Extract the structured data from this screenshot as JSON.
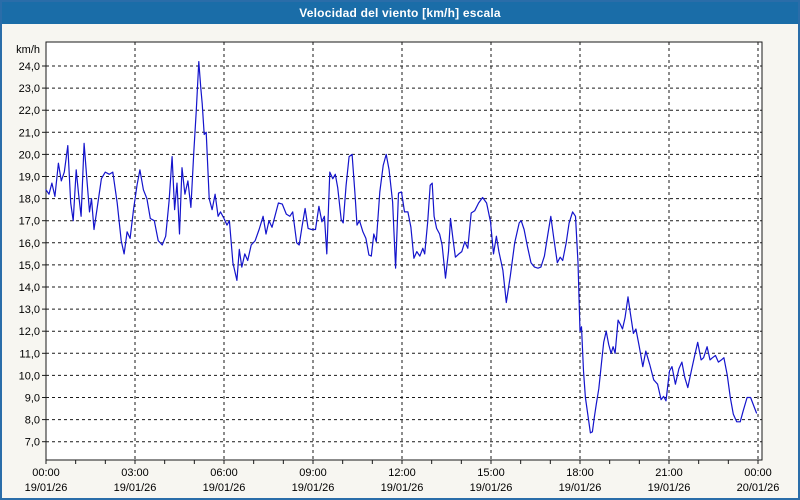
{
  "title": "Velocidad del viento [km/h] escala",
  "colors": {
    "titlebar": "#1a6da8",
    "title_text": "#ffffff",
    "window_border": "#2a6da9",
    "background": "#f7f6f1",
    "plot_background": "#ffffff",
    "axis": "#1a1a1a",
    "grid": "#1a1a1a",
    "text": "#000000",
    "line": "#1414cc"
  },
  "chart_data": {
    "type": "line",
    "title": "Velocidad del viento [km/h] escala",
    "ylabel": "km/h",
    "xlabel": "",
    "legend": "none",
    "grid": "dashed",
    "ylim": [
      6.3,
      25.3
    ],
    "x_range_minutes": [
      0,
      1440
    ],
    "y_tick_values": [
      24,
      23,
      22,
      21,
      20,
      19,
      18,
      17,
      16,
      15,
      14,
      13,
      12,
      11,
      10,
      9,
      8,
      7
    ],
    "y_tick_labels": [
      "24,0",
      "23,0",
      "22,0",
      "21,0",
      "20,0",
      "19,0",
      "18,0",
      "17,0",
      "16,0",
      "15,0",
      "14,0",
      "13,0",
      "12,0",
      "11,0",
      "10,0",
      "9,0",
      "8,0",
      "7,0"
    ],
    "x_ticks": [
      {
        "minutes": 0,
        "time": "00:00",
        "date": "19/01/26"
      },
      {
        "minutes": 180,
        "time": "03:00",
        "date": "19/01/26"
      },
      {
        "minutes": 360,
        "time": "06:00",
        "date": "19/01/26"
      },
      {
        "minutes": 540,
        "time": "09:00",
        "date": "19/01/26"
      },
      {
        "minutes": 720,
        "time": "12:00",
        "date": "19/01/26"
      },
      {
        "minutes": 900,
        "time": "15:00",
        "date": "19/01/26"
      },
      {
        "minutes": 1080,
        "time": "18:00",
        "date": "19/01/26"
      },
      {
        "minutes": 1260,
        "time": "21:00",
        "date": "19/01/26"
      },
      {
        "minutes": 1440,
        "time": "00:00",
        "date": "20/01/26"
      }
    ],
    "series": [
      {
        "name": "Velocidad del viento [km/h]",
        "color": "#1414cc",
        "points": [
          [
            0,
            18.4
          ],
          [
            6,
            18.2
          ],
          [
            12,
            18.7
          ],
          [
            18,
            18.1
          ],
          [
            25,
            19.6
          ],
          [
            31,
            18.8
          ],
          [
            37,
            19.2
          ],
          [
            44,
            20.4
          ],
          [
            50,
            17.8
          ],
          [
            55,
            17.0
          ],
          [
            61,
            19.3
          ],
          [
            66,
            18.2
          ],
          [
            71,
            17.2
          ],
          [
            77,
            20.5
          ],
          [
            83,
            18.8
          ],
          [
            88,
            17.4
          ],
          [
            92,
            18.0
          ],
          [
            97,
            16.6
          ],
          [
            105,
            17.8
          ],
          [
            112,
            18.9
          ],
          [
            120,
            19.2
          ],
          [
            128,
            19.1
          ],
          [
            135,
            19.2
          ],
          [
            144,
            17.8
          ],
          [
            152,
            16.1
          ],
          [
            158,
            15.5
          ],
          [
            164,
            16.5
          ],
          [
            170,
            16.2
          ],
          [
            177,
            17.5
          ],
          [
            184,
            18.6
          ],
          [
            190,
            19.3
          ],
          [
            197,
            18.4
          ],
          [
            204,
            18.0
          ],
          [
            211,
            17.1
          ],
          [
            219,
            17.0
          ],
          [
            227,
            16.1
          ],
          [
            235,
            15.9
          ],
          [
            242,
            16.3
          ],
          [
            249,
            17.9
          ],
          [
            255,
            19.9
          ],
          [
            260,
            17.5
          ],
          [
            265,
            18.7
          ],
          [
            270,
            16.4
          ],
          [
            275,
            19.4
          ],
          [
            281,
            18.2
          ],
          [
            287,
            18.8
          ],
          [
            293,
            17.6
          ],
          [
            299,
            20.1
          ],
          [
            304,
            22.0
          ],
          [
            309,
            24.2
          ],
          [
            313,
            23.0
          ],
          [
            316,
            22.3
          ],
          [
            320,
            20.9
          ],
          [
            324,
            21.0
          ],
          [
            330,
            18.0
          ],
          [
            336,
            17.5
          ],
          [
            342,
            18.2
          ],
          [
            348,
            17.2
          ],
          [
            353,
            17.4
          ],
          [
            360,
            17.1
          ],
          [
            366,
            16.8
          ],
          [
            371,
            17.0
          ],
          [
            378,
            15.1
          ],
          [
            386,
            14.3
          ],
          [
            391,
            15.7
          ],
          [
            396,
            14.9
          ],
          [
            402,
            15.5
          ],
          [
            408,
            15.2
          ],
          [
            415,
            15.9
          ],
          [
            423,
            16.1
          ],
          [
            431,
            16.6
          ],
          [
            439,
            17.2
          ],
          [
            445,
            16.4
          ],
          [
            451,
            17.0
          ],
          [
            457,
            16.7
          ],
          [
            463,
            17.2
          ],
          [
            470,
            17.8
          ],
          [
            478,
            17.75
          ],
          [
            486,
            17.3
          ],
          [
            493,
            17.2
          ],
          [
            499,
            17.4
          ],
          [
            507,
            16.0
          ],
          [
            512,
            15.9
          ],
          [
            518,
            16.75
          ],
          [
            524,
            17.55
          ],
          [
            530,
            16.65
          ],
          [
            537,
            16.6
          ],
          [
            545,
            16.6
          ],
          [
            552,
            17.65
          ],
          [
            558,
            16.95
          ],
          [
            563,
            17.2
          ],
          [
            568,
            15.5
          ],
          [
            574,
            19.2
          ],
          [
            580,
            18.9
          ],
          [
            585,
            19.1
          ],
          [
            590,
            18.5
          ],
          [
            597,
            17.05
          ],
          [
            601,
            16.9
          ],
          [
            607,
            18.6
          ],
          [
            613,
            19.9
          ],
          [
            619,
            20.0
          ],
          [
            625,
            18.2
          ],
          [
            629,
            16.8
          ],
          [
            634,
            17.0
          ],
          [
            641,
            16.5
          ],
          [
            647,
            16.2
          ],
          [
            653,
            15.45
          ],
          [
            658,
            15.4
          ],
          [
            663,
            16.4
          ],
          [
            668,
            16.05
          ],
          [
            675,
            18.3
          ],
          [
            682,
            19.5
          ],
          [
            688,
            20.0
          ],
          [
            694,
            19.3
          ],
          [
            701,
            17.85
          ],
          [
            707,
            14.85
          ],
          [
            713,
            18.25
          ],
          [
            719,
            18.3
          ],
          [
            725,
            17.4
          ],
          [
            732,
            17.4
          ],
          [
            738,
            16.7
          ],
          [
            744,
            15.3
          ],
          [
            750,
            15.6
          ],
          [
            756,
            15.4
          ],
          [
            762,
            15.75
          ],
          [
            766,
            15.5
          ],
          [
            772,
            16.95
          ],
          [
            777,
            18.6
          ],
          [
            781,
            18.7
          ],
          [
            785,
            17.2
          ],
          [
            790,
            16.65
          ],
          [
            796,
            16.4
          ],
          [
            801,
            15.9
          ],
          [
            808,
            14.4
          ],
          [
            814,
            15.6
          ],
          [
            818,
            17.1
          ],
          [
            823,
            16.2
          ],
          [
            828,
            15.35
          ],
          [
            835,
            15.5
          ],
          [
            841,
            15.6
          ],
          [
            847,
            16.05
          ],
          [
            853,
            15.75
          ],
          [
            860,
            17.35
          ],
          [
            867,
            17.45
          ],
          [
            875,
            17.8
          ],
          [
            883,
            18.05
          ],
          [
            891,
            17.8
          ],
          [
            899,
            16.95
          ],
          [
            905,
            15.5
          ],
          [
            911,
            16.3
          ],
          [
            916,
            15.6
          ],
          [
            924,
            14.75
          ],
          [
            931,
            13.3
          ],
          [
            939,
            14.5
          ],
          [
            948,
            16.0
          ],
          [
            957,
            16.9
          ],
          [
            961,
            17.0
          ],
          [
            967,
            16.6
          ],
          [
            974,
            15.8
          ],
          [
            981,
            15.1
          ],
          [
            988,
            14.9
          ],
          [
            995,
            14.85
          ],
          [
            1001,
            14.9
          ],
          [
            1008,
            15.4
          ],
          [
            1015,
            16.4
          ],
          [
            1021,
            17.2
          ],
          [
            1027,
            16.2
          ],
          [
            1034,
            15.1
          ],
          [
            1040,
            15.35
          ],
          [
            1045,
            15.2
          ],
          [
            1052,
            16.0
          ],
          [
            1058,
            16.9
          ],
          [
            1065,
            17.4
          ],
          [
            1071,
            17.2
          ],
          [
            1076,
            15.1
          ],
          [
            1080,
            12.0
          ],
          [
            1083,
            12.2
          ],
          [
            1087,
            10.2
          ],
          [
            1091,
            9.0
          ],
          [
            1096,
            8.2
          ],
          [
            1101,
            7.4
          ],
          [
            1105,
            7.45
          ],
          [
            1109,
            8.1
          ],
          [
            1113,
            8.7
          ],
          [
            1118,
            9.4
          ],
          [
            1124,
            10.7
          ],
          [
            1128,
            11.5
          ],
          [
            1133,
            12.0
          ],
          [
            1138,
            11.4
          ],
          [
            1143,
            11.0
          ],
          [
            1147,
            11.3
          ],
          [
            1151,
            11.0
          ],
          [
            1157,
            12.5
          ],
          [
            1162,
            12.3
          ],
          [
            1166,
            12.1
          ],
          [
            1171,
            12.6
          ],
          [
            1177,
            13.55
          ],
          [
            1182,
            12.8
          ],
          [
            1188,
            11.9
          ],
          [
            1193,
            12.1
          ],
          [
            1200,
            11.3
          ],
          [
            1207,
            10.4
          ],
          [
            1213,
            11.1
          ],
          [
            1221,
            10.5
          ],
          [
            1229,
            9.8
          ],
          [
            1237,
            9.6
          ],
          [
            1244,
            8.9
          ],
          [
            1249,
            9.05
          ],
          [
            1254,
            8.85
          ],
          [
            1261,
            10.2
          ],
          [
            1266,
            10.4
          ],
          [
            1273,
            9.6
          ],
          [
            1280,
            10.3
          ],
          [
            1286,
            10.6
          ],
          [
            1292,
            9.9
          ],
          [
            1298,
            9.45
          ],
          [
            1305,
            10.2
          ],
          [
            1311,
            10.8
          ],
          [
            1318,
            11.5
          ],
          [
            1325,
            10.7
          ],
          [
            1330,
            10.8
          ],
          [
            1337,
            11.3
          ],
          [
            1343,
            10.7
          ],
          [
            1348,
            10.8
          ],
          [
            1354,
            10.9
          ],
          [
            1360,
            10.6
          ],
          [
            1366,
            10.7
          ],
          [
            1371,
            10.8
          ],
          [
            1378,
            10.0
          ],
          [
            1384,
            9.0
          ],
          [
            1390,
            8.25
          ],
          [
            1397,
            7.9
          ],
          [
            1404,
            7.9
          ],
          [
            1410,
            8.4
          ],
          [
            1418,
            9.0
          ],
          [
            1425,
            9.0
          ],
          [
            1430,
            8.7
          ],
          [
            1437,
            8.3
          ]
        ]
      }
    ]
  }
}
